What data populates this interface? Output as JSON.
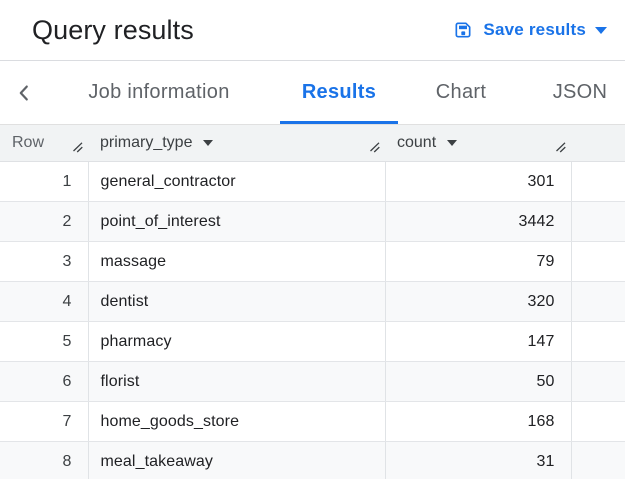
{
  "header": {
    "title": "Query results",
    "save_results": {
      "label": "Save results",
      "icon": "save-icon",
      "dropdown_icon": "caret-down-icon"
    }
  },
  "tab_bar": {
    "back_icon": "chevron-left-icon",
    "tabs": [
      {
        "label": "Job information",
        "active": false
      },
      {
        "label": "Results",
        "active": true
      },
      {
        "label": "Chart",
        "active": false
      },
      {
        "label": "JSON",
        "active": false
      }
    ]
  },
  "table": {
    "columns": [
      {
        "label": "Row",
        "menu_icon": null,
        "resize_icon": "column-resize-icon"
      },
      {
        "label": "primary_type",
        "menu_icon": "caret-down-icon",
        "resize_icon": "column-resize-icon"
      },
      {
        "label": "count",
        "menu_icon": "caret-down-icon",
        "resize_icon": "column-resize-icon"
      }
    ],
    "rows": [
      {
        "row": 1,
        "primary_type": "general_contractor",
        "count": 301
      },
      {
        "row": 2,
        "primary_type": "point_of_interest",
        "count": 3442
      },
      {
        "row": 3,
        "primary_type": "massage",
        "count": 79
      },
      {
        "row": 4,
        "primary_type": "dentist",
        "count": 320
      },
      {
        "row": 5,
        "primary_type": "pharmacy",
        "count": 147
      },
      {
        "row": 6,
        "primary_type": "florist",
        "count": 50
      },
      {
        "row": 7,
        "primary_type": "home_goods_store",
        "count": 168
      },
      {
        "row": 8,
        "primary_type": "meal_takeaway",
        "count": 31
      }
    ]
  },
  "colors": {
    "accent_blue": "#1a73e8",
    "inactive_tab_gray": "#5f6368",
    "header_bg": "#f1f3f4",
    "stripe_bg": "#f8f9fa",
    "border_gray": "#e0e0e0",
    "title_text": "#202124"
  }
}
